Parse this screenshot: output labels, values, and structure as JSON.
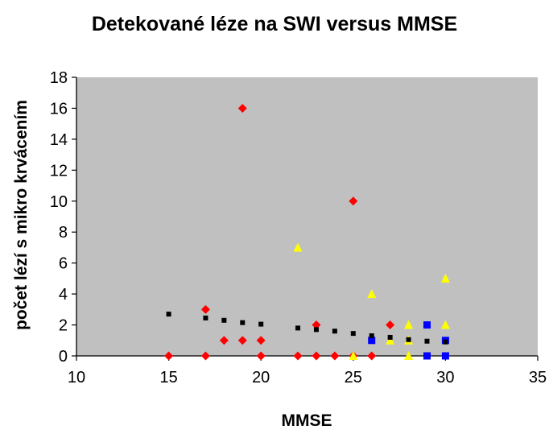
{
  "chart_data": {
    "type": "scatter",
    "title": "Detekované léze na SWI versus MMSE",
    "xlabel": "MMSE",
    "ylabel": "počet lézí s mikro krvácením",
    "xlim": [
      10,
      35
    ],
    "ylim": [
      0,
      18
    ],
    "xticks": [
      "10",
      "15",
      "20",
      "25",
      "30",
      "35"
    ],
    "yticks": [
      "0",
      "2",
      "4",
      "6",
      "8",
      "10",
      "12",
      "14",
      "16",
      "18"
    ],
    "plot_background": "#c0c0c0",
    "grid": false,
    "legend": "none",
    "series": [
      {
        "marker": "diamond",
        "color": "#ff0000",
        "points": [
          [
            15,
            0
          ],
          [
            17,
            0
          ],
          [
            17,
            3
          ],
          [
            18,
            1
          ],
          [
            19,
            16
          ],
          [
            19,
            1
          ],
          [
            20,
            1
          ],
          [
            20,
            0
          ],
          [
            22,
            0
          ],
          [
            23,
            0
          ],
          [
            23,
            2
          ],
          [
            24,
            0
          ],
          [
            25,
            0
          ],
          [
            25,
            10
          ],
          [
            26,
            0
          ],
          [
            27,
            2
          ]
        ]
      },
      {
        "marker": "triangle",
        "color": "#ffff00",
        "points": [
          [
            22,
            7
          ],
          [
            25,
            0
          ],
          [
            26,
            4
          ],
          [
            27,
            1
          ],
          [
            28,
            2
          ],
          [
            28,
            1
          ],
          [
            28,
            0
          ],
          [
            30,
            5
          ],
          [
            30,
            2
          ]
        ]
      },
      {
        "marker": "square",
        "color": "#0000ff",
        "points": [
          [
            26,
            1
          ],
          [
            29,
            2
          ],
          [
            29,
            0
          ],
          [
            30,
            1
          ],
          [
            30,
            0
          ]
        ]
      },
      {
        "marker": "small-square",
        "color": "#000000",
        "points": [
          [
            15,
            2.7
          ],
          [
            17,
            2.45
          ],
          [
            18,
            2.3
          ],
          [
            19,
            2.15
          ],
          [
            20,
            2.05
          ],
          [
            22,
            1.8
          ],
          [
            23,
            1.7
          ],
          [
            24,
            1.6
          ],
          [
            25,
            1.45
          ],
          [
            26,
            1.3
          ],
          [
            27,
            1.2
          ],
          [
            28,
            1.05
          ],
          [
            29,
            0.95
          ],
          [
            30,
            0.9
          ]
        ]
      }
    ]
  }
}
